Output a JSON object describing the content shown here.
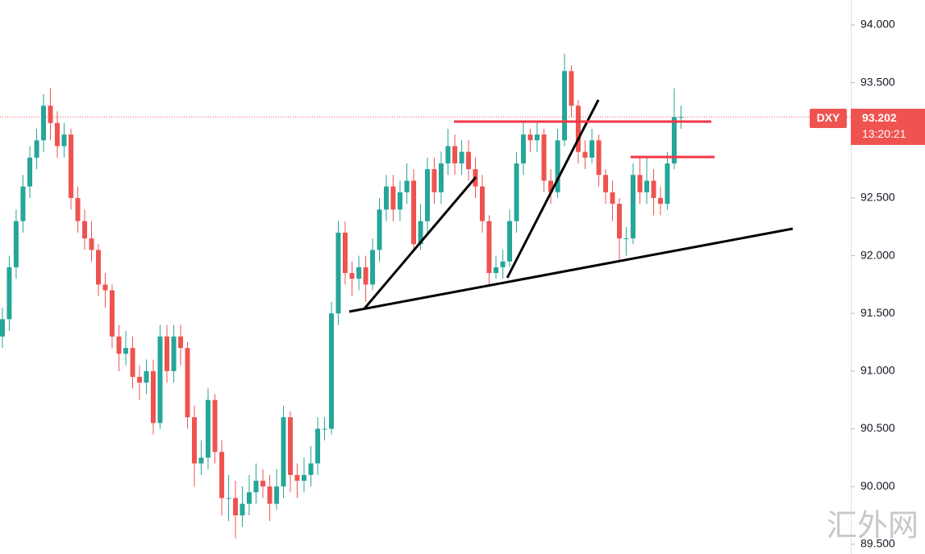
{
  "chart_data": {
    "type": "candlestick",
    "symbol": "DXY",
    "last_price": 93.202,
    "countdown": "13:20:21",
    "watermark": "汇外网",
    "up_color": "#26a69a",
    "down_color": "#ef5350",
    "ylim": [
      89.415,
      94.216
    ],
    "yticks": [
      {
        "value": 89.5,
        "label": "89.500"
      },
      {
        "value": 90,
        "label": "90.000"
      },
      {
        "value": 90.5,
        "label": "90.500"
      },
      {
        "value": 91,
        "label": "91.000"
      },
      {
        "value": 91.5,
        "label": "91.500"
      },
      {
        "value": 92,
        "label": "92.000"
      },
      {
        "value": 92.5,
        "label": "92.500"
      },
      {
        "value": 93,
        "label": "93.000"
      },
      {
        "value": 93.5,
        "label": "93.500"
      },
      {
        "value": 94,
        "label": "94.000"
      }
    ],
    "open": [
      91.3,
      91.45,
      91.9,
      92.3,
      92.6,
      92.85,
      93.0,
      93.3,
      93.15,
      92.95,
      93.05,
      92.5,
      92.3,
      92.15,
      92.05,
      91.75,
      91.7,
      91.3,
      91.15,
      91.2,
      90.95,
      90.9,
      91.0,
      90.55,
      91.3,
      91.0,
      91.3,
      91.2,
      90.6,
      90.2,
      90.25,
      90.75,
      90.3,
      89.9,
      89.9,
      89.75,
      89.85,
      89.95,
      90.05,
      90.0,
      89.85,
      90.0,
      90.6,
      90.1,
      90.05,
      90.1,
      90.2,
      90.5,
      90.5,
      91.5,
      92.2,
      91.85,
      91.8,
      91.9,
      91.75,
      92.05,
      92.4,
      92.6,
      92.4,
      92.55,
      92.65,
      92.1,
      92.3,
      92.75,
      92.55,
      92.8,
      92.95,
      92.8,
      92.9,
      92.75,
      92.6,
      92.3,
      91.85,
      91.9,
      91.95,
      92.3,
      92.8,
      93.05,
      93.0,
      93.05,
      92.65,
      92.55,
      93.0,
      93.6,
      93.3,
      92.9,
      92.85,
      93.0,
      92.7,
      92.55,
      92.45,
      92.15,
      92.15,
      92.7,
      92.55,
      92.65,
      92.5,
      92.45,
      92.8,
      93.2
    ],
    "high": [
      91.55,
      92.0,
      92.4,
      92.7,
      92.95,
      93.1,
      93.4,
      93.45,
      93.25,
      93.15,
      93.1,
      92.6,
      92.4,
      92.3,
      92.1,
      91.85,
      91.75,
      91.4,
      91.35,
      91.3,
      91.05,
      91.1,
      91.1,
      91.4,
      91.4,
      91.4,
      91.4,
      91.25,
      90.7,
      90.4,
      90.85,
      90.8,
      90.4,
      90.1,
      90.05,
      90.0,
      90.1,
      90.2,
      90.15,
      90.1,
      90.15,
      90.7,
      90.65,
      90.2,
      90.25,
      90.35,
      90.6,
      90.6,
      91.6,
      92.3,
      92.3,
      91.95,
      92.0,
      92.0,
      92.15,
      92.5,
      92.7,
      92.7,
      92.65,
      92.8,
      92.75,
      92.45,
      92.85,
      92.85,
      92.9,
      93.1,
      93.05,
      93.0,
      93.0,
      92.85,
      92.7,
      92.35,
      92.0,
      92.05,
      92.4,
      92.9,
      93.15,
      93.1,
      93.15,
      93.1,
      92.75,
      93.1,
      93.75,
      93.65,
      93.35,
      93.0,
      93.1,
      93.05,
      92.75,
      92.65,
      92.5,
      92.25,
      92.8,
      92.85,
      92.85,
      92.75,
      92.6,
      92.9,
      93.45,
      93.3
    ],
    "low": [
      91.2,
      91.35,
      91.8,
      92.2,
      92.5,
      92.75,
      92.9,
      93.0,
      92.85,
      92.85,
      92.4,
      92.2,
      92.05,
      91.95,
      91.65,
      91.55,
      91.2,
      91.0,
      91.05,
      90.85,
      90.75,
      90.8,
      90.45,
      90.5,
      90.9,
      90.9,
      91.05,
      90.5,
      90.0,
      90.1,
      90.15,
      90.2,
      89.75,
      89.7,
      89.55,
      89.65,
      89.75,
      89.85,
      89.9,
      89.7,
      89.8,
      89.9,
      89.95,
      89.9,
      89.95,
      90.0,
      90.1,
      90.4,
      90.45,
      91.4,
      91.75,
      91.65,
      91.7,
      91.6,
      91.7,
      91.95,
      92.3,
      92.3,
      92.3,
      92.45,
      92.05,
      92.05,
      92.2,
      92.45,
      92.45,
      92.7,
      92.7,
      92.7,
      92.65,
      92.5,
      92.2,
      91.75,
      91.8,
      91.8,
      91.9,
      92.2,
      92.7,
      92.9,
      92.9,
      92.55,
      92.45,
      92.5,
      92.95,
      93.2,
      92.8,
      92.75,
      92.8,
      92.6,
      92.45,
      92.3,
      91.95,
      92.0,
      92.1,
      92.45,
      92.45,
      92.35,
      92.35,
      92.4,
      92.75,
      93.1
    ],
    "close": [
      91.45,
      91.9,
      92.3,
      92.6,
      92.85,
      93.0,
      93.3,
      93.15,
      92.95,
      93.05,
      92.5,
      92.3,
      92.15,
      92.05,
      91.75,
      91.7,
      91.3,
      91.15,
      91.2,
      90.95,
      90.9,
      91.0,
      90.55,
      91.3,
      91.0,
      91.3,
      91.2,
      90.6,
      90.2,
      90.25,
      90.75,
      90.3,
      89.9,
      89.9,
      89.75,
      89.85,
      89.95,
      90.05,
      90.0,
      89.85,
      90.0,
      90.6,
      90.1,
      90.05,
      90.1,
      90.2,
      90.5,
      90.5,
      91.5,
      92.2,
      91.85,
      91.8,
      91.9,
      91.75,
      92.05,
      92.4,
      92.6,
      92.4,
      92.55,
      92.65,
      92.1,
      92.3,
      92.75,
      92.55,
      92.8,
      92.95,
      92.8,
      92.9,
      92.75,
      92.6,
      92.3,
      91.85,
      91.9,
      91.95,
      92.3,
      92.8,
      93.05,
      93.0,
      93.05,
      92.65,
      92.55,
      93.0,
      93.6,
      93.3,
      92.9,
      92.85,
      93.0,
      92.7,
      92.55,
      92.45,
      92.15,
      92.15,
      92.7,
      92.55,
      92.65,
      92.5,
      92.45,
      92.8,
      93.2,
      93.202
    ]
  }
}
